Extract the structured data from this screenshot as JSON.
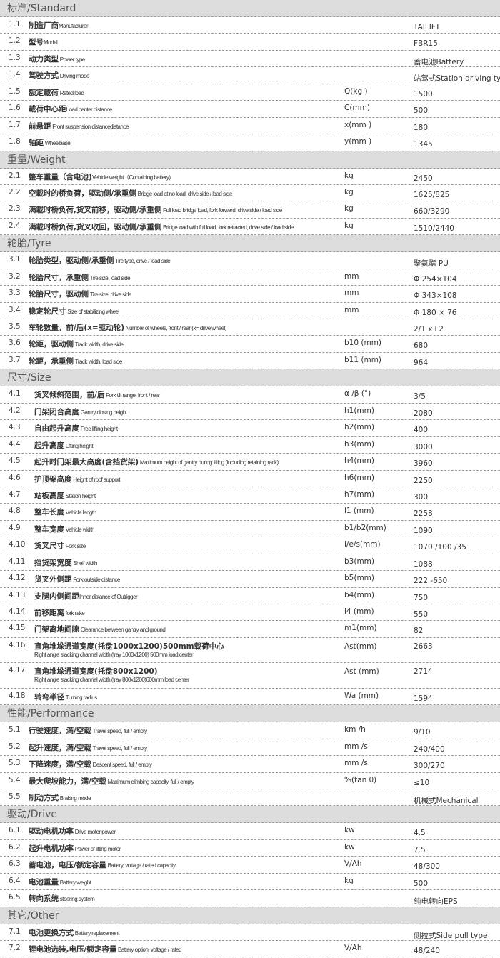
{
  "sections": [
    {
      "title": "标准/Standard",
      "rows": [
        {
          "num": "1.1",
          "cn": "制造厂商",
          "en": "Manufacturer",
          "unit": "",
          "value": "TAILIFT"
        },
        {
          "num": "1.2",
          "cn": "型号",
          "en": "Model",
          "unit": "",
          "value": "FBR15"
        },
        {
          "num": "1.3",
          "cn": "动力类型",
          "en": " Power type",
          "unit": "",
          "value": "蓄电池Battery"
        },
        {
          "num": "1.4",
          "cn": "驾驶方式",
          "en": " Driving mode",
          "unit": "",
          "value": "站驾式Station driving type"
        },
        {
          "num": "1.5",
          "cn": "额定載荷",
          "en": " Rated load",
          "unit": "Q(kg )",
          "value": "1500"
        },
        {
          "num": "1.6",
          "cn": "載荷中心距",
          "en": "Load center distance",
          "unit": "C(mm)",
          "value": "500"
        },
        {
          "num": "1.7",
          "cn": "前悬距",
          "en": " Front suspension distancedistance",
          "unit": "x(mm )",
          "value": "180"
        },
        {
          "num": "1.8",
          "cn": "轴距",
          "en": " Wheelbase",
          "unit": "y(mm )",
          "value": "1345"
        }
      ]
    },
    {
      "title": "重量/Weight",
      "rows": [
        {
          "num": "2.1",
          "cn": "整车重量（含电池)",
          "en": "Vehicle weight（Containing battery)",
          "unit": "kg",
          "value": "2450"
        },
        {
          "num": "2.2",
          "cn": "空載时的桥负荷，驱动侧/承重侧",
          "en": " Bridge load at no load, drive side / load side",
          "unit": "kg",
          "value": "1625/825"
        },
        {
          "num": "2.3",
          "cn": "满載时桥负荷,货叉前移，驱动侧/承重侧",
          "en": " Full load bridge load, fork forward, drive side / load side",
          "unit": "kg",
          "value": "660/3290"
        },
        {
          "num": "2.4",
          "cn": "满載时桥负荷,货叉收回，驱动侧/承重侧",
          "en": " Bridge load with full load, fork retracted, drive side / load side",
          "unit": "kg",
          "value": "1510/2440"
        }
      ]
    },
    {
      "title": "轮胎/Tyre",
      "rows": [
        {
          "num": "3.1",
          "cn": "轮胎类型，驱动侧/承重侧",
          "en": " Tire type, drive / load side",
          "unit": "",
          "value": "聚氨酯   PU"
        },
        {
          "num": "3.2",
          "cn": "轮胎尺寸，承重侧",
          "en": " Tire size, load side",
          "unit": "mm",
          "value": "Φ 254×104"
        },
        {
          "num": "3.3",
          "cn": "轮胎尺寸，驱动侧",
          "en": " Tire size, drive side",
          "unit": "mm",
          "value": "Φ 343×108"
        },
        {
          "num": "3.4",
          "cn": "稳定轮尺寸",
          "en": " Size of stabilizing wheel",
          "unit": "mm",
          "value": "Φ 180 × 76"
        },
        {
          "num": "3.5",
          "cn": "车轮数量，前/后(x=驱动轮)",
          "en": " Number of wheels, front / rear (x= drive wheel)",
          "unit": "",
          "value": "2/1 x+2"
        },
        {
          "num": "3.6",
          "cn": "轮距，驱动侧",
          "en": " Track width, drive side",
          "unit": "b10 (mm)",
          "value": "680"
        },
        {
          "num": "3.7",
          "cn": "轮距，承重侧",
          "en": " Track width, load side",
          "unit": "b11 (mm)",
          "value": "964"
        }
      ]
    },
    {
      "title": "尺寸/Size",
      "wide": true,
      "rows": [
        {
          "num": "4.1",
          "cn": "货叉倾斜范围，前/后",
          "en": " Fork tilt range, front / rear",
          "unit": "α /β (°)",
          "value": "3/5"
        },
        {
          "num": "4.2",
          "cn": "门架闭合高度",
          "en": " Gantry closing height",
          "unit": "h1(mm)",
          "value": "2080"
        },
        {
          "num": "4.3",
          "cn": "自由起升高度",
          "en": " Free lifting height",
          "unit": "h2(mm)",
          "value": "400"
        },
        {
          "num": "4.4",
          "cn": "起升高度",
          "en": " Lifting height",
          "unit": "h3(mm)",
          "value": "3000"
        },
        {
          "num": "4.5",
          "cn": "起升时门架最大高度(含挡货架)",
          "en": " Maximum height of gantry during lifting (including retaining rack)",
          "unit": "h4(mm)",
          "value": "3960"
        },
        {
          "num": "4.6",
          "cn": "护顶架高度",
          "en": " Height of roof support",
          "unit": "h6(mm)",
          "value": "2250"
        },
        {
          "num": "4.7",
          "cn": "站板高度",
          "en": " Station height",
          "unit": "h7(mm)",
          "value": "300"
        },
        {
          "num": "4.8",
          "cn": "整车长度",
          "en": " Vehicle length",
          "unit": "l1 (mm)",
          "value": "2258"
        },
        {
          "num": "4.9",
          "cn": "整车宽度",
          "en": " Vehicle width",
          "unit": "b1/b2(mm)",
          "value": "1090"
        },
        {
          "num": "4.10",
          "cn": "货叉尺寸",
          "en": " Fork size",
          "unit": "l/e/s(mm)",
          "value": "1070  /100  /35"
        },
        {
          "num": "4.11",
          "cn": "挡货架宽度",
          "en": " Shelf width",
          "unit": "b3(mm)",
          "value": "1088"
        },
        {
          "num": "4.12",
          "cn": "货叉外侧距",
          "en": " Fork outside distance",
          "unit": "b5(mm)",
          "value": "222 -650"
        },
        {
          "num": "4.13",
          "cn": "支腿内侧间距",
          "en": "Inner distance of Outrigger",
          "unit": "b4(mm)",
          "value": "750"
        },
        {
          "num": "4.14",
          "cn": "前移距离",
          "en": " fork rake",
          "unit": "l4 (mm)",
          "value": "550"
        },
        {
          "num": "4.15",
          "cn": "门架离地间隙",
          "en": " Clearance between gantry and ground",
          "unit": "m1(mm)",
          "value": "82"
        },
        {
          "num": "4.16",
          "cn": "直角堆垛通道宽度(托盘1000x1200)500mm载荷中心",
          "en": "",
          "en2": "Right angle stacking channel width (tray 1000x1200) 500mm load center",
          "unit": "Ast(mm)",
          "value": "2663"
        },
        {
          "num": "4.17",
          "cn": "直角堆垛通道宽度(托盘800x1200)",
          "en": "",
          "en2": "Right angle stacking channel width (tray 800x1200)600mm load center",
          "unit": "Ast (mm)",
          "value": "2714"
        },
        {
          "num": "4.18",
          "cn": "转弯半径",
          "en": " Turning radius",
          "unit": "Wa (mm)",
          "value": "1594"
        }
      ]
    },
    {
      "title": "性能/Performance",
      "rows": [
        {
          "num": "5.1",
          "cn": "行驶速度，满/空载",
          "en": " Travel speed, full / empty",
          "unit": "km /h",
          "value": "9/10"
        },
        {
          "num": "5.2",
          "cn": "起升速度，满/空载",
          "en": " Travel speed, full / empty",
          "unit": "mm /s",
          "value": "240/400"
        },
        {
          "num": "5.3",
          "cn": "下降速度，满/空载",
          "en": " Descent speed, full / empty",
          "unit": "mm /s",
          "value": "300/270"
        },
        {
          "num": "5.4",
          "cn": "最大爬坡能力，满/空载",
          "en": " Maximum climbing capacity, full / empty",
          "unit": "%(tan θ)",
          "value": "≤10"
        },
        {
          "num": "5.5",
          "cn": "制动方式",
          "en": " Braking mode",
          "unit": "",
          "value": "机械式Mechanical"
        }
      ]
    },
    {
      "title": "驱动/Drive",
      "rows": [
        {
          "num": "6.1",
          "cn": "驱动电机功率",
          "en": "  Drive motor power",
          "unit": "kw",
          "value": "4.5"
        },
        {
          "num": "6.2",
          "cn": "起升电机功率",
          "en": "  Power of lifting motor",
          "unit": "kw",
          "value": "7.5"
        },
        {
          "num": "6.3",
          "cn": "蓄电池，电压/额定容量",
          "en": "  Battery, voltage / rated capacity",
          "unit": "V/Ah",
          "value": "48/300"
        },
        {
          "num": "6.4",
          "cn": "电池重量",
          "en": "  Battery weight",
          "unit": "kg",
          "value": "500"
        },
        {
          "num": "6.5",
          "cn": "转向系统",
          "en": "  steering system",
          "unit": "",
          "value": "纯电转向EPS"
        }
      ]
    },
    {
      "title": "其它/Other",
      "rows": [
        {
          "num": "7.1",
          "cn": "电池更换方式",
          "en": "  Battery replacement",
          "unit": "",
          "value": "侧拉式Side pull type"
        },
        {
          "num": "7.2",
          "cn": "锂电池选装,电压/额定容量",
          "en": "  Battery option, voltage / rated",
          "unit": "V/Ah",
          "value": "48/240"
        }
      ]
    }
  ]
}
